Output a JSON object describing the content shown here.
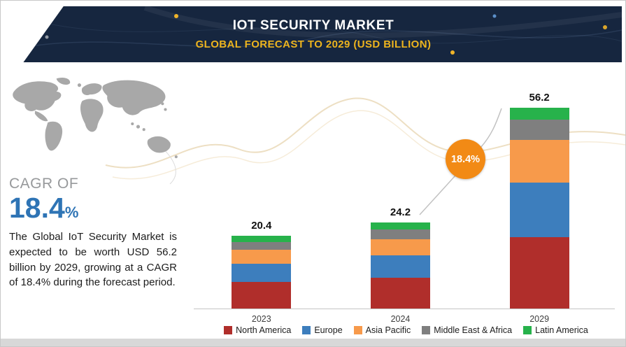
{
  "header": {
    "title": "IOT SECURITY MARKET",
    "subtitle": "GLOBAL FORECAST TO 2029 (USD BILLION)"
  },
  "left_panel": {
    "cagr_label": "CAGR OF",
    "cagr_value": "18.4",
    "cagr_unit": "%",
    "description": "The Global IoT Security Market is expected to be worth USD 56.2 billion by 2029, growing at a CAGR of 18.4% during the forecast period."
  },
  "badge": {
    "label": "18.4%"
  },
  "chart_data": {
    "type": "bar",
    "stacked": true,
    "title": "IoT Security Market",
    "categories": [
      "2023",
      "2024",
      "2029"
    ],
    "totals": [
      20.4,
      24.2,
      56.2
    ],
    "series": [
      {
        "name": "North America",
        "color": "#b02e2b",
        "values": [
          7.4,
          8.7,
          20.0
        ]
      },
      {
        "name": "Europe",
        "color": "#3d7ebd",
        "values": [
          5.2,
          6.2,
          15.3
        ]
      },
      {
        "name": "Asia Pacific",
        "color": "#f79a4b",
        "values": [
          3.8,
          4.6,
          12.0
        ]
      },
      {
        "name": "Middle East & Africa",
        "color": "#7f7f7f",
        "values": [
          2.3,
          2.7,
          5.6
        ]
      },
      {
        "name": "Latin America",
        "color": "#27b24b",
        "values": [
          1.7,
          2.0,
          3.3
        ]
      }
    ],
    "xlabel": "",
    "ylabel": "USD Billion",
    "ylim": [
      0,
      60
    ],
    "grid": false,
    "legend_position": "bottom",
    "growth_annotation": "18.4%"
  },
  "colors": {
    "header_bg": "#16263f",
    "subtitle_yellow": "#edb41e",
    "cagr_blue": "#2e74b5",
    "badge_orange": "#f28a15",
    "axis_gray": "#c4c4c4",
    "map_gray": "#a8a8a8"
  },
  "icons": {
    "world_map": "world-map-silhouette",
    "trend_line": "rising-curve"
  }
}
